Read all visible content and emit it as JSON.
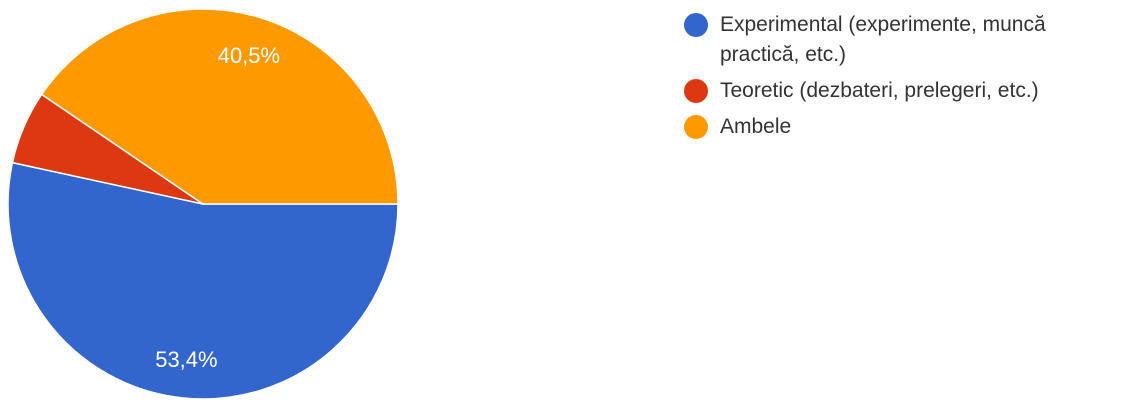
{
  "chart_data": {
    "type": "pie",
    "slices": [
      {
        "label": "Experimental (experimente, muncă\npractică, etc.)",
        "value": 53.4,
        "value_label": "53,4%",
        "color": "#3366cc"
      },
      {
        "label": "Teoretic (dezbateri, prelegeri, etc.)",
        "value": 6.1,
        "value_label": "",
        "color": "#dc3912"
      },
      {
        "label": "Ambele",
        "value": 40.5,
        "value_label": "40,5%",
        "color": "#ff9900"
      }
    ],
    "legend_position": "right"
  }
}
